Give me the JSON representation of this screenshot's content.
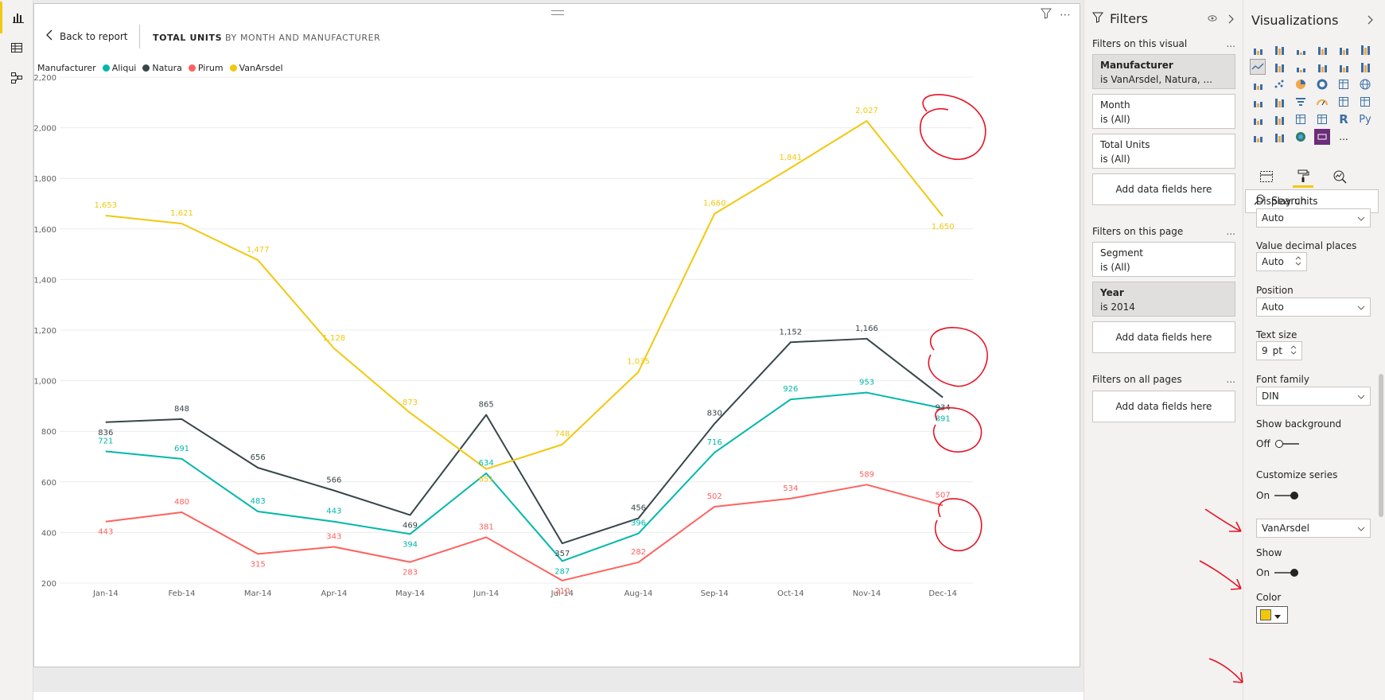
{
  "nav": {
    "items": [
      {
        "name": "report-view-icon",
        "active": true
      },
      {
        "name": "data-view-icon",
        "active": false
      },
      {
        "name": "model-view-icon",
        "active": false
      }
    ]
  },
  "visual": {
    "back_label": "Back to report",
    "crumb_primary": "TOTAL UNITS",
    "crumb_secondary": "BY MONTH AND MANUFACTURER",
    "legend_title": "Manufacturer"
  },
  "chart_data": {
    "type": "line",
    "categories": [
      "Jan-14",
      "Feb-14",
      "Mar-14",
      "Apr-14",
      "May-14",
      "Jun-14",
      "Jul-14",
      "Aug-14",
      "Sep-14",
      "Oct-14",
      "Nov-14",
      "Dec-14"
    ],
    "ylim": [
      200,
      2200
    ],
    "yticks": [
      200,
      400,
      600,
      800,
      1000,
      1200,
      1400,
      1600,
      1800,
      2000,
      2200
    ],
    "ytick_labels": [
      "200",
      "400",
      "600",
      "800",
      "1,000",
      "1,200",
      "1,400",
      "1,600",
      "1,800",
      "2,000",
      "2,200"
    ],
    "grid": true,
    "legend": "top-left",
    "series": [
      {
        "name": "Aliqui",
        "color": "#01b8aa",
        "values": [
          721,
          691,
          483,
          443,
          394,
          634,
          287,
          396,
          716,
          926,
          953,
          891
        ],
        "labels": [
          "721",
          "691",
          "483",
          "443",
          "394",
          "634",
          "287",
          "396",
          "716",
          "926",
          "953",
          "891"
        ]
      },
      {
        "name": "Natura",
        "color": "#374649",
        "values": [
          836,
          848,
          656,
          566,
          469,
          865,
          357,
          456,
          830,
          1152,
          1166,
          934
        ],
        "labels": [
          "836",
          "848",
          "656",
          "566",
          "469",
          "865",
          "357",
          "456",
          "830",
          "1,152",
          "1,166",
          "934"
        ]
      },
      {
        "name": "Pirum",
        "color": "#fd625e",
        "values": [
          443,
          480,
          315,
          343,
          283,
          381,
          210,
          282,
          502,
          534,
          589,
          507
        ],
        "labels": [
          "443",
          "480",
          "315",
          "343",
          "283",
          "381",
          "210",
          "282",
          "502",
          "534",
          "589",
          "507"
        ]
      },
      {
        "name": "VanArsdel",
        "color": "#f2c80f",
        "values": [
          1653,
          1621,
          1477,
          1128,
          873,
          651,
          748,
          1035,
          1660,
          1841,
          2027,
          1650
        ],
        "labels": [
          "1,653",
          "1,621",
          "1,477",
          "1,128",
          "873",
          "651",
          "748",
          "1,035",
          "1,660",
          "1,841",
          "2,027",
          "1,650"
        ]
      }
    ]
  },
  "filters": {
    "title": "Filters",
    "on_visual_label": "Filters on this visual",
    "on_page_label": "Filters on this page",
    "all_pages_label": "Filters on all pages",
    "more": "...",
    "add_label": "Add data fields here",
    "visual_cards": [
      {
        "name": "Manufacturer",
        "value": "is VanArsdel, Natura, ..."
      },
      {
        "name": "Month",
        "value": "is (All)"
      },
      {
        "name": "Total Units",
        "value": "is (All)"
      }
    ],
    "page_cards": [
      {
        "name": "Segment",
        "value": "is (All)"
      },
      {
        "name": "Year",
        "value": "is 2014"
      }
    ]
  },
  "visualizations": {
    "title": "Visualizations",
    "search_placeholder": "Search",
    "display_units_label": "Display units",
    "display_units_value": "Auto",
    "decimal_label": "Value decimal places",
    "decimal_value": "Auto",
    "position_label": "Position",
    "position_value": "Auto",
    "text_size_label": "Text size",
    "text_size_value": "9",
    "text_size_unit": "pt",
    "font_family_label": "Font family",
    "font_family_value": "DIN",
    "show_bg_label": "Show background",
    "show_bg_state": "Off",
    "customize_label": "Customize series",
    "customize_state": "On",
    "series_select_value": "VanArsdel",
    "show_label": "Show",
    "show_state": "On",
    "color_label": "Color",
    "color_value": "#f2c80f",
    "more_icon": "...",
    "python_label": "Py",
    "r_label": "R"
  }
}
